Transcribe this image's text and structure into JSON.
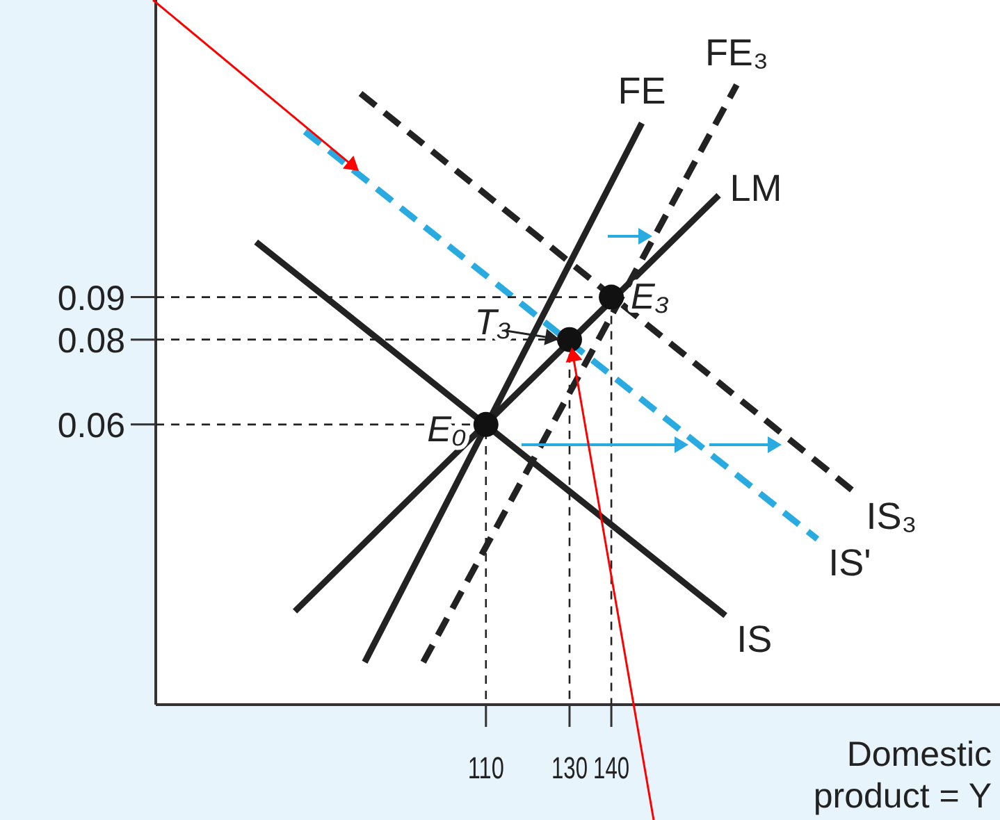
{
  "chart_data": {
    "type": "line",
    "xlabel": "Domestic product = Y",
    "xlim": [
      31,
      233
    ],
    "ylim": [
      -0.006,
      0.16
    ],
    "xticks": [
      110,
      130,
      140
    ],
    "yticks": [
      0.06,
      0.08,
      0.09
    ],
    "grid": false,
    "series": [
      {
        "name": "IS",
        "color": "#222222",
        "x": [
          55,
          167.3
        ],
        "values": [
          0.103,
          0.015
        ]
      },
      {
        "name": "LM",
        "color": "#222222",
        "x": [
          64.3,
          165.7
        ],
        "values": [
          0.016,
          0.114
        ]
      },
      {
        "name": "FE",
        "color": "#222222",
        "x": [
          81,
          147.3
        ],
        "values": [
          0.004,
          0.131
        ]
      },
      {
        "name": "FE₃",
        "color": "#222222",
        "line_style": "dashed",
        "x": [
          95,
          170
        ],
        "values": [
          0.004,
          0.14
        ]
      },
      {
        "name": "IS'",
        "color": "#29abe2",
        "line_style": "dashed",
        "x": [
          66.7,
          189.3
        ],
        "values": [
          0.129,
          0.033
        ]
      },
      {
        "name": "IS₃",
        "color": "#222222",
        "line_style": "dashed",
        "x": [
          80,
          198.3
        ],
        "values": [
          0.138,
          0.044
        ]
      },
      {
        "color": "#222222",
        "line_style": "dashed",
        "x": [
          31,
          110,
          110
        ],
        "values": [
          0.06,
          0.06,
          -0.006
        ]
      },
      {
        "color": "#222222",
        "line_style": "dashed",
        "x": [
          31,
          130,
          130
        ],
        "values": [
          0.08,
          0.08,
          -0.006
        ]
      },
      {
        "color": "#222222",
        "line_style": "dashed",
        "x": [
          31,
          140,
          140
        ],
        "values": [
          0.09,
          0.09,
          -0.006
        ]
      },
      {
        "type": "scatter",
        "marker": "circle",
        "color": "#111111",
        "x": [
          110,
          130,
          140
        ],
        "values": [
          0.06,
          0.08,
          0.09
        ]
      }
    ],
    "annotations": [
      {
        "text": "E₀",
        "x": 110,
        "y": 0.06
      },
      {
        "text": "T₃",
        "x": 130,
        "y": 0.08
      },
      {
        "text": "E₃",
        "x": 140,
        "y": 0.09
      }
    ]
  }
}
